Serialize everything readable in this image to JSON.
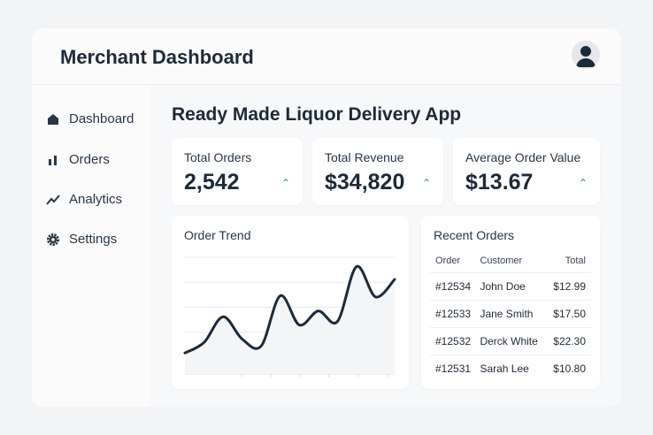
{
  "header": {
    "title": "Merchant Dashboard",
    "avatar_icon": "user-icon"
  },
  "sidebar": {
    "items": [
      {
        "label": "Dashboard",
        "icon": "home-icon"
      },
      {
        "label": "Orders",
        "icon": "bar-chart-icon"
      },
      {
        "label": "Analytics",
        "icon": "trend-icon"
      },
      {
        "label": "Settings",
        "icon": "gear-icon"
      }
    ]
  },
  "main": {
    "title": "Ready Made Liquor Delivery App"
  },
  "stats": [
    {
      "label": "Total Orders",
      "value": "2,542"
    },
    {
      "label": "Total Revenue",
      "value": "$34,820"
    },
    {
      "label": "Average Order Value",
      "value": "$13.67"
    }
  ],
  "colors": {
    "accent": "#3f8f6a",
    "line": "#1c2b3a"
  },
  "chart_data": {
    "type": "line",
    "title": "Order Trend",
    "xlabel": "",
    "ylabel": "",
    "ylim": [
      0,
      100
    ],
    "grid": true,
    "x": [
      0,
      1,
      2,
      3,
      4,
      5,
      6,
      7,
      8,
      9,
      10,
      11
    ],
    "values": [
      18,
      27,
      49,
      30,
      24,
      67,
      42,
      54,
      45,
      92,
      66,
      81
    ]
  },
  "recent_orders": {
    "title": "Recent Orders",
    "columns": [
      "Order",
      "Customer",
      "Total"
    ],
    "rows": [
      [
        "#12534",
        "John Doe",
        "$12.99"
      ],
      [
        "#12533",
        "Jane Smith",
        "$17.50"
      ],
      [
        "#12532",
        "Derck White",
        "$22.30"
      ],
      [
        "#12531",
        "Sarah Lee",
        "$10.80"
      ]
    ]
  }
}
